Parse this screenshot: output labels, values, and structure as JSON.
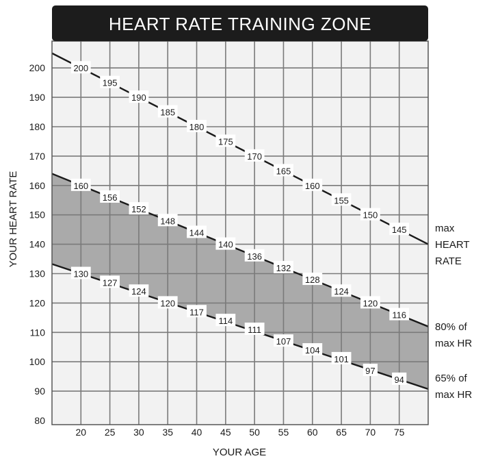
{
  "chart_data": {
    "type": "line",
    "title": "HEART RATE TRAINING ZONE",
    "xlabel": "YOUR AGE",
    "ylabel": "YOUR HEART RATE",
    "xlim": [
      15,
      80
    ],
    "ylim": [
      80,
      210
    ],
    "x_ticks": [
      20,
      25,
      30,
      35,
      40,
      45,
      50,
      55,
      60,
      65,
      70,
      75
    ],
    "y_ticks": [
      80,
      90,
      100,
      110,
      120,
      130,
      140,
      150,
      160,
      170,
      180,
      190,
      200
    ],
    "grid": true,
    "shaded_zone": "between 65% of max HR and 80% of max HR",
    "series": [
      {
        "name": "max HEART RATE",
        "name_lines": [
          "max",
          "HEART",
          "RATE"
        ],
        "x": [
          20,
          25,
          30,
          35,
          40,
          45,
          50,
          55,
          60,
          65,
          70,
          75
        ],
        "values": [
          200,
          195,
          190,
          185,
          180,
          175,
          170,
          165,
          160,
          155,
          150,
          145
        ]
      },
      {
        "name": "80% of max HR",
        "name_lines": [
          "80% of",
          "max HR"
        ],
        "x": [
          20,
          25,
          30,
          35,
          40,
          45,
          50,
          55,
          60,
          65,
          70,
          75
        ],
        "values": [
          160,
          156,
          152,
          148,
          144,
          140,
          136,
          132,
          128,
          124,
          120,
          116
        ]
      },
      {
        "name": "65% of max HR",
        "name_lines": [
          "65% of",
          "max HR"
        ],
        "x": [
          20,
          25,
          30,
          35,
          40,
          45,
          50,
          55,
          60,
          65,
          70,
          75
        ],
        "values": [
          130,
          127,
          124,
          120,
          117,
          114,
          111,
          107,
          104,
          101,
          97,
          94
        ]
      }
    ],
    "colors": {
      "title_bar": "#1c1c1c",
      "plot_background": "#f2f2f2",
      "grid": "#7a7a7a",
      "zone_fill": "#aaaaaa",
      "line": "#1a1a1a"
    }
  }
}
